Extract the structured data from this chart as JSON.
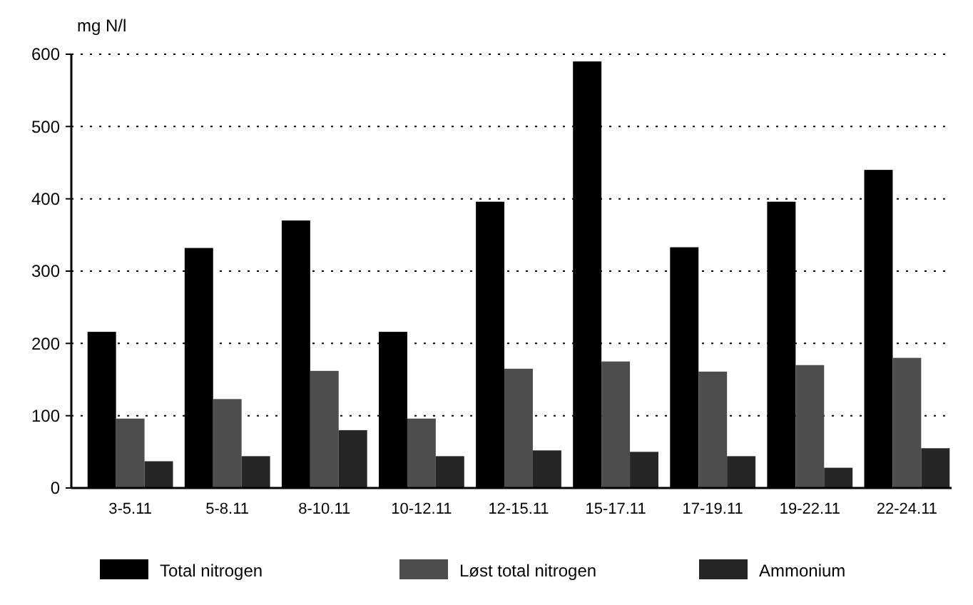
{
  "chart_data": {
    "type": "bar",
    "ylabel": "mg N/l",
    "categories": [
      "3-5.11",
      "5-8.11",
      "8-10.11",
      "10-12.11",
      "12-15.11",
      "15-17.11",
      "17-19.11",
      "19-22.11",
      "22-24.11"
    ],
    "series": [
      {
        "name": "Total nitrogen",
        "color": "#000000",
        "values": [
          216,
          332,
          370,
          216,
          396,
          590,
          333,
          396,
          440
        ]
      },
      {
        "name": "Løst total nitrogen",
        "color": "#4d4d4d",
        "values": [
          96,
          123,
          162,
          96,
          165,
          175,
          161,
          170,
          180
        ]
      },
      {
        "name": "Ammonium",
        "color": "#262626",
        "values": [
          37,
          44,
          80,
          44,
          52,
          50,
          44,
          28,
          55
        ]
      }
    ],
    "ylim": [
      0,
      600
    ],
    "yticks": [
      0,
      100,
      200,
      300,
      400,
      500,
      600
    ],
    "grid": "y",
    "legend": "bottom"
  }
}
